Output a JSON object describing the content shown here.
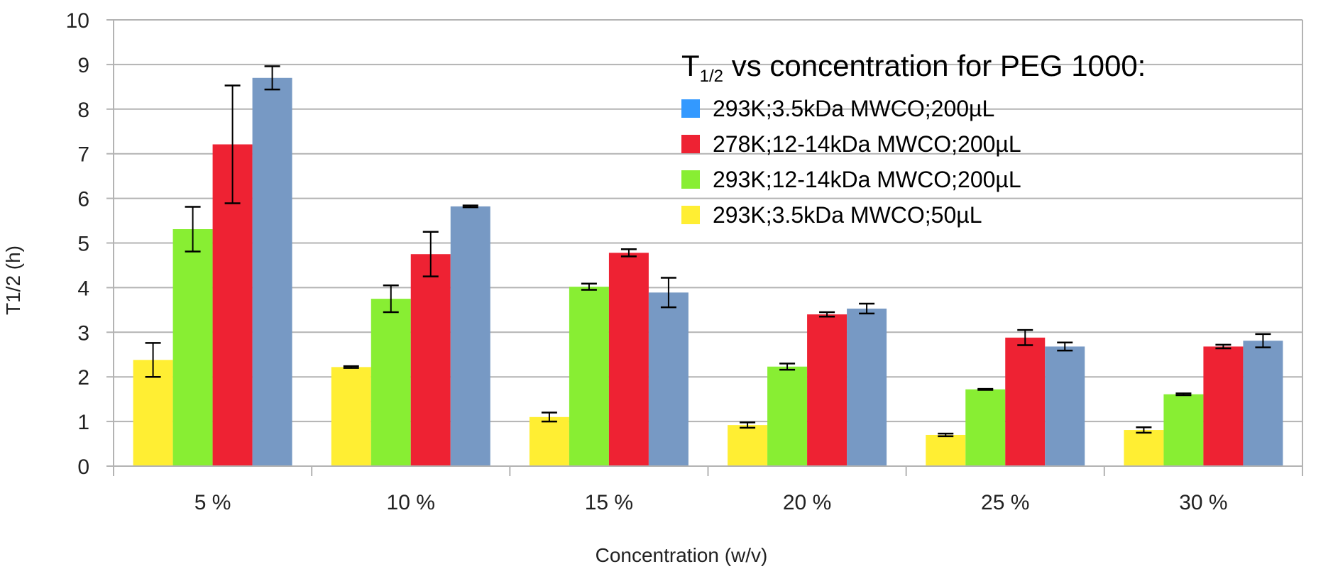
{
  "chart_data": {
    "type": "bar",
    "xlabel": "Concentration (w/v)",
    "ylabel": "T1/2 (h)",
    "ylim": [
      0,
      10
    ],
    "y_ticks": [
      "0",
      "1",
      "2",
      "3",
      "4",
      "5",
      "6",
      "7",
      "8",
      "9",
      "10"
    ],
    "grid": true,
    "legend_position": "top-right",
    "legend_title": {
      "main": "T",
      "subscript": "1/2",
      "rest": " vs concentration for PEG 1000:"
    },
    "categories": [
      "5 %",
      "10 %",
      "15 %",
      "20 %",
      "25 %",
      "30 %"
    ],
    "series": [
      {
        "name": "293K;3.5kDa MWCO;50µL",
        "color": "#ffee33",
        "values": [
          2.38,
          2.22,
          1.1,
          0.92,
          0.7,
          0.81
        ],
        "errors": [
          0.38,
          0.02,
          0.1,
          0.06,
          0.03,
          0.06
        ]
      },
      {
        "name": "293K;12-14kDa MWCO;200µL",
        "color": "#88ee33",
        "values": [
          5.31,
          3.75,
          4.02,
          2.23,
          1.72,
          1.61
        ],
        "errors": [
          0.5,
          0.3,
          0.07,
          0.07,
          0.01,
          0.02
        ]
      },
      {
        "name": "278K;12-14kDa MWCO;200µL",
        "color": "#ee2233",
        "values": [
          7.21,
          4.75,
          4.78,
          3.4,
          2.88,
          2.68
        ],
        "errors": [
          1.32,
          0.5,
          0.08,
          0.05,
          0.17,
          0.04
        ]
      },
      {
        "name": "293K;3.5kDa MWCO;200µL",
        "color": "#7799c4",
        "legend_color": "#3399ff",
        "values": [
          8.7,
          5.82,
          3.89,
          3.53,
          2.68,
          2.81
        ],
        "errors": [
          0.26,
          0.02,
          0.33,
          0.11,
          0.09,
          0.15
        ]
      }
    ],
    "legend_order": [
      3,
      2,
      1,
      0
    ]
  }
}
